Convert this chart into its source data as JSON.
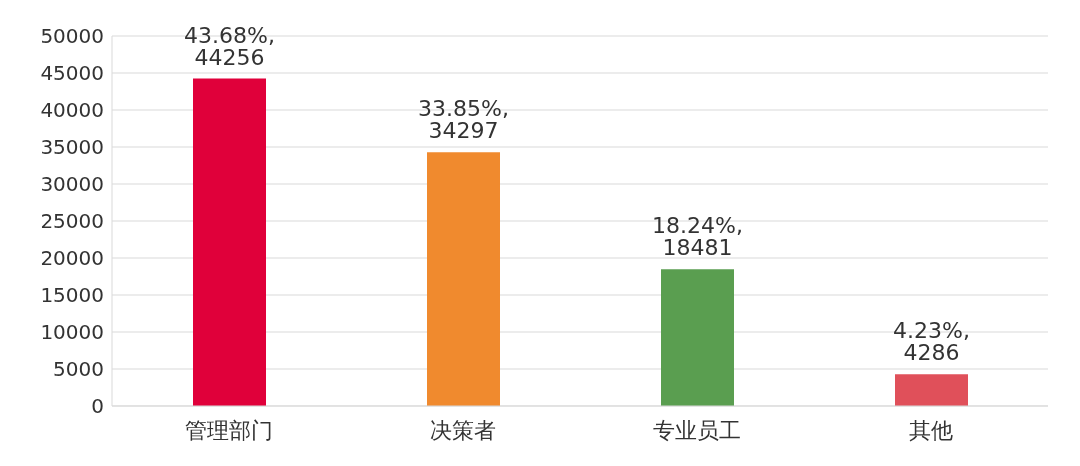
{
  "chart_data": {
    "type": "bar",
    "categories": [
      "管理部门",
      "决策者",
      "专业员工",
      "其他"
    ],
    "values": [
      44256,
      34297,
      18481,
      4286
    ],
    "colors": [
      "#e0003a",
      "#f08a2e",
      "#5a9e50",
      "#e0505a"
    ],
    "value_labels": [
      "43.68%, 44256",
      "33.85%, 34297",
      "18.24%, 18481",
      "4.23%, 4286"
    ],
    "ylim": [
      0,
      50000
    ],
    "yticks": [
      0,
      5000,
      10000,
      15000,
      20000,
      25000,
      30000,
      35000,
      40000,
      45000,
      50000
    ],
    "grid": "y"
  }
}
